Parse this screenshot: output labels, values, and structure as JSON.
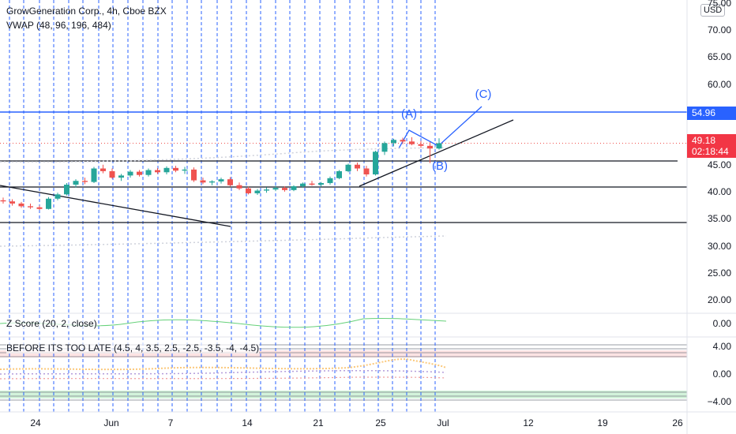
{
  "header": {
    "symbol_line": "GrowGeneration Corp., 4h, Cboe BZX",
    "vwap_line": "VWAP (48, 96, 196, 484)",
    "currency_badge": "USD"
  },
  "price_axis": {
    "labels": [
      "75.00",
      "70.00",
      "65.00",
      "60.00",
      "55.00",
      "50.00",
      "45.00",
      "40.00",
      "35.00",
      "30.00",
      "25.00",
      "20.00"
    ],
    "values": [
      75,
      70,
      65,
      60,
      55,
      50,
      45,
      40,
      35,
      30,
      25,
      20
    ]
  },
  "price_tags": {
    "level_label": "54.96",
    "current_price": "49.18",
    "countdown": "02:18:44",
    "level_color": "#2962ff",
    "current_color": "#f23645"
  },
  "wave_labels": [
    "(A)",
    "(B)",
    "(C)"
  ],
  "zscore_pane": {
    "title": "Z Score (20, 2, close)",
    "axis_label": "0.00",
    "line_color": "#66d17a"
  },
  "oscillator_pane": {
    "title": "BEFORE ITS TOO LATE (4.5, 4, 3.5, 2.5, -2.5, -3.5, -4, -4.5)",
    "axis_labels": [
      "4.00",
      "0.00",
      "−4.00"
    ],
    "upper_band_color": "#fde3e3",
    "lower_band_color": "#d2f3da"
  },
  "time_axis": {
    "labels": [
      "24",
      "Jun",
      "7",
      "14",
      "21",
      "25",
      "Jul",
      "12",
      "19",
      "26"
    ]
  },
  "colors": {
    "up": "#26a69a",
    "down": "#ef5350",
    "drawing": "#2962ff",
    "trendline": "#131722",
    "vertical_grid": "#2962ff"
  },
  "chart_data": {
    "type": "candlestick",
    "title": "GrowGeneration Corp., 4h, Cboe BZX",
    "xlabel": "",
    "ylabel": "",
    "ylim": [
      15.5,
      76
    ],
    "x_ticks": [
      "24",
      "Jun",
      "7",
      "14",
      "21",
      "25",
      "Jul",
      "12",
      "19",
      "26"
    ],
    "last_price": 49.18,
    "horizontal_levels": [
      54.96,
      45.4,
      40.4,
      34.0
    ],
    "ohlc": [
      [
        38.6,
        39.1,
        38.0,
        38.4
      ],
      [
        38.4,
        38.8,
        37.6,
        38.0
      ],
      [
        38.0,
        38.3,
        37.2,
        37.5
      ],
      [
        37.5,
        38.0,
        37.0,
        37.3
      ],
      [
        37.3,
        37.6,
        36.8,
        37.0
      ],
      [
        37.0,
        39.2,
        36.9,
        38.9
      ],
      [
        38.9,
        40.0,
        38.6,
        39.7
      ],
      [
        39.7,
        41.8,
        39.5,
        41.5
      ],
      [
        41.5,
        42.5,
        41.0,
        42.2
      ],
      [
        42.2,
        42.8,
        41.6,
        42.0
      ],
      [
        42.0,
        44.8,
        41.8,
        44.5
      ],
      [
        44.5,
        45.2,
        43.6,
        44.0
      ],
      [
        44.0,
        44.5,
        42.6,
        42.8
      ],
      [
        42.8,
        43.5,
        42.2,
        43.2
      ],
      [
        43.2,
        44.2,
        42.8,
        43.9
      ],
      [
        43.9,
        44.2,
        43.0,
        43.3
      ],
      [
        43.3,
        44.5,
        43.0,
        44.2
      ],
      [
        44.2,
        44.6,
        43.5,
        43.8
      ],
      [
        43.8,
        44.9,
        43.4,
        44.6
      ],
      [
        44.6,
        45.0,
        43.8,
        44.1
      ],
      [
        44.1,
        44.8,
        43.5,
        44.3
      ],
      [
        44.3,
        44.7,
        42.0,
        42.3
      ],
      [
        42.3,
        42.8,
        41.6,
        41.9
      ],
      [
        41.9,
        42.3,
        41.4,
        42.1
      ],
      [
        42.1,
        42.8,
        41.7,
        42.5
      ],
      [
        42.5,
        42.9,
        41.2,
        41.4
      ],
      [
        41.4,
        41.9,
        40.5,
        40.8
      ],
      [
        40.8,
        41.1,
        39.7,
        39.9
      ],
      [
        39.9,
        40.7,
        39.6,
        40.4
      ],
      [
        40.4,
        41.0,
        40.0,
        40.6
      ],
      [
        40.6,
        41.3,
        40.3,
        40.9
      ],
      [
        40.9,
        41.2,
        40.2,
        40.5
      ],
      [
        40.5,
        41.4,
        40.3,
        41.2
      ],
      [
        41.2,
        41.9,
        40.9,
        41.7
      ],
      [
        41.7,
        42.2,
        41.3,
        41.5
      ],
      [
        41.5,
        42.0,
        41.1,
        41.8
      ],
      [
        41.8,
        43.0,
        41.5,
        42.7
      ],
      [
        42.7,
        44.2,
        42.5,
        44.0
      ],
      [
        44.0,
        45.4,
        43.8,
        45.2
      ],
      [
        45.2,
        45.6,
        44.0,
        44.5
      ],
      [
        44.5,
        45.0,
        43.0,
        43.4
      ],
      [
        43.4,
        47.8,
        43.2,
        47.6
      ],
      [
        47.6,
        49.5,
        47.0,
        49.2
      ],
      [
        49.2,
        50.0,
        48.6,
        49.8
      ],
      [
        49.8,
        50.2,
        49.0,
        49.5
      ],
      [
        49.5,
        50.3,
        48.8,
        49.0
      ],
      [
        49.0,
        49.6,
        48.3,
        48.7
      ],
      [
        48.7,
        49.4,
        45.5,
        48.2
      ],
      [
        48.2,
        50.1,
        48.0,
        49.18
      ]
    ]
  }
}
